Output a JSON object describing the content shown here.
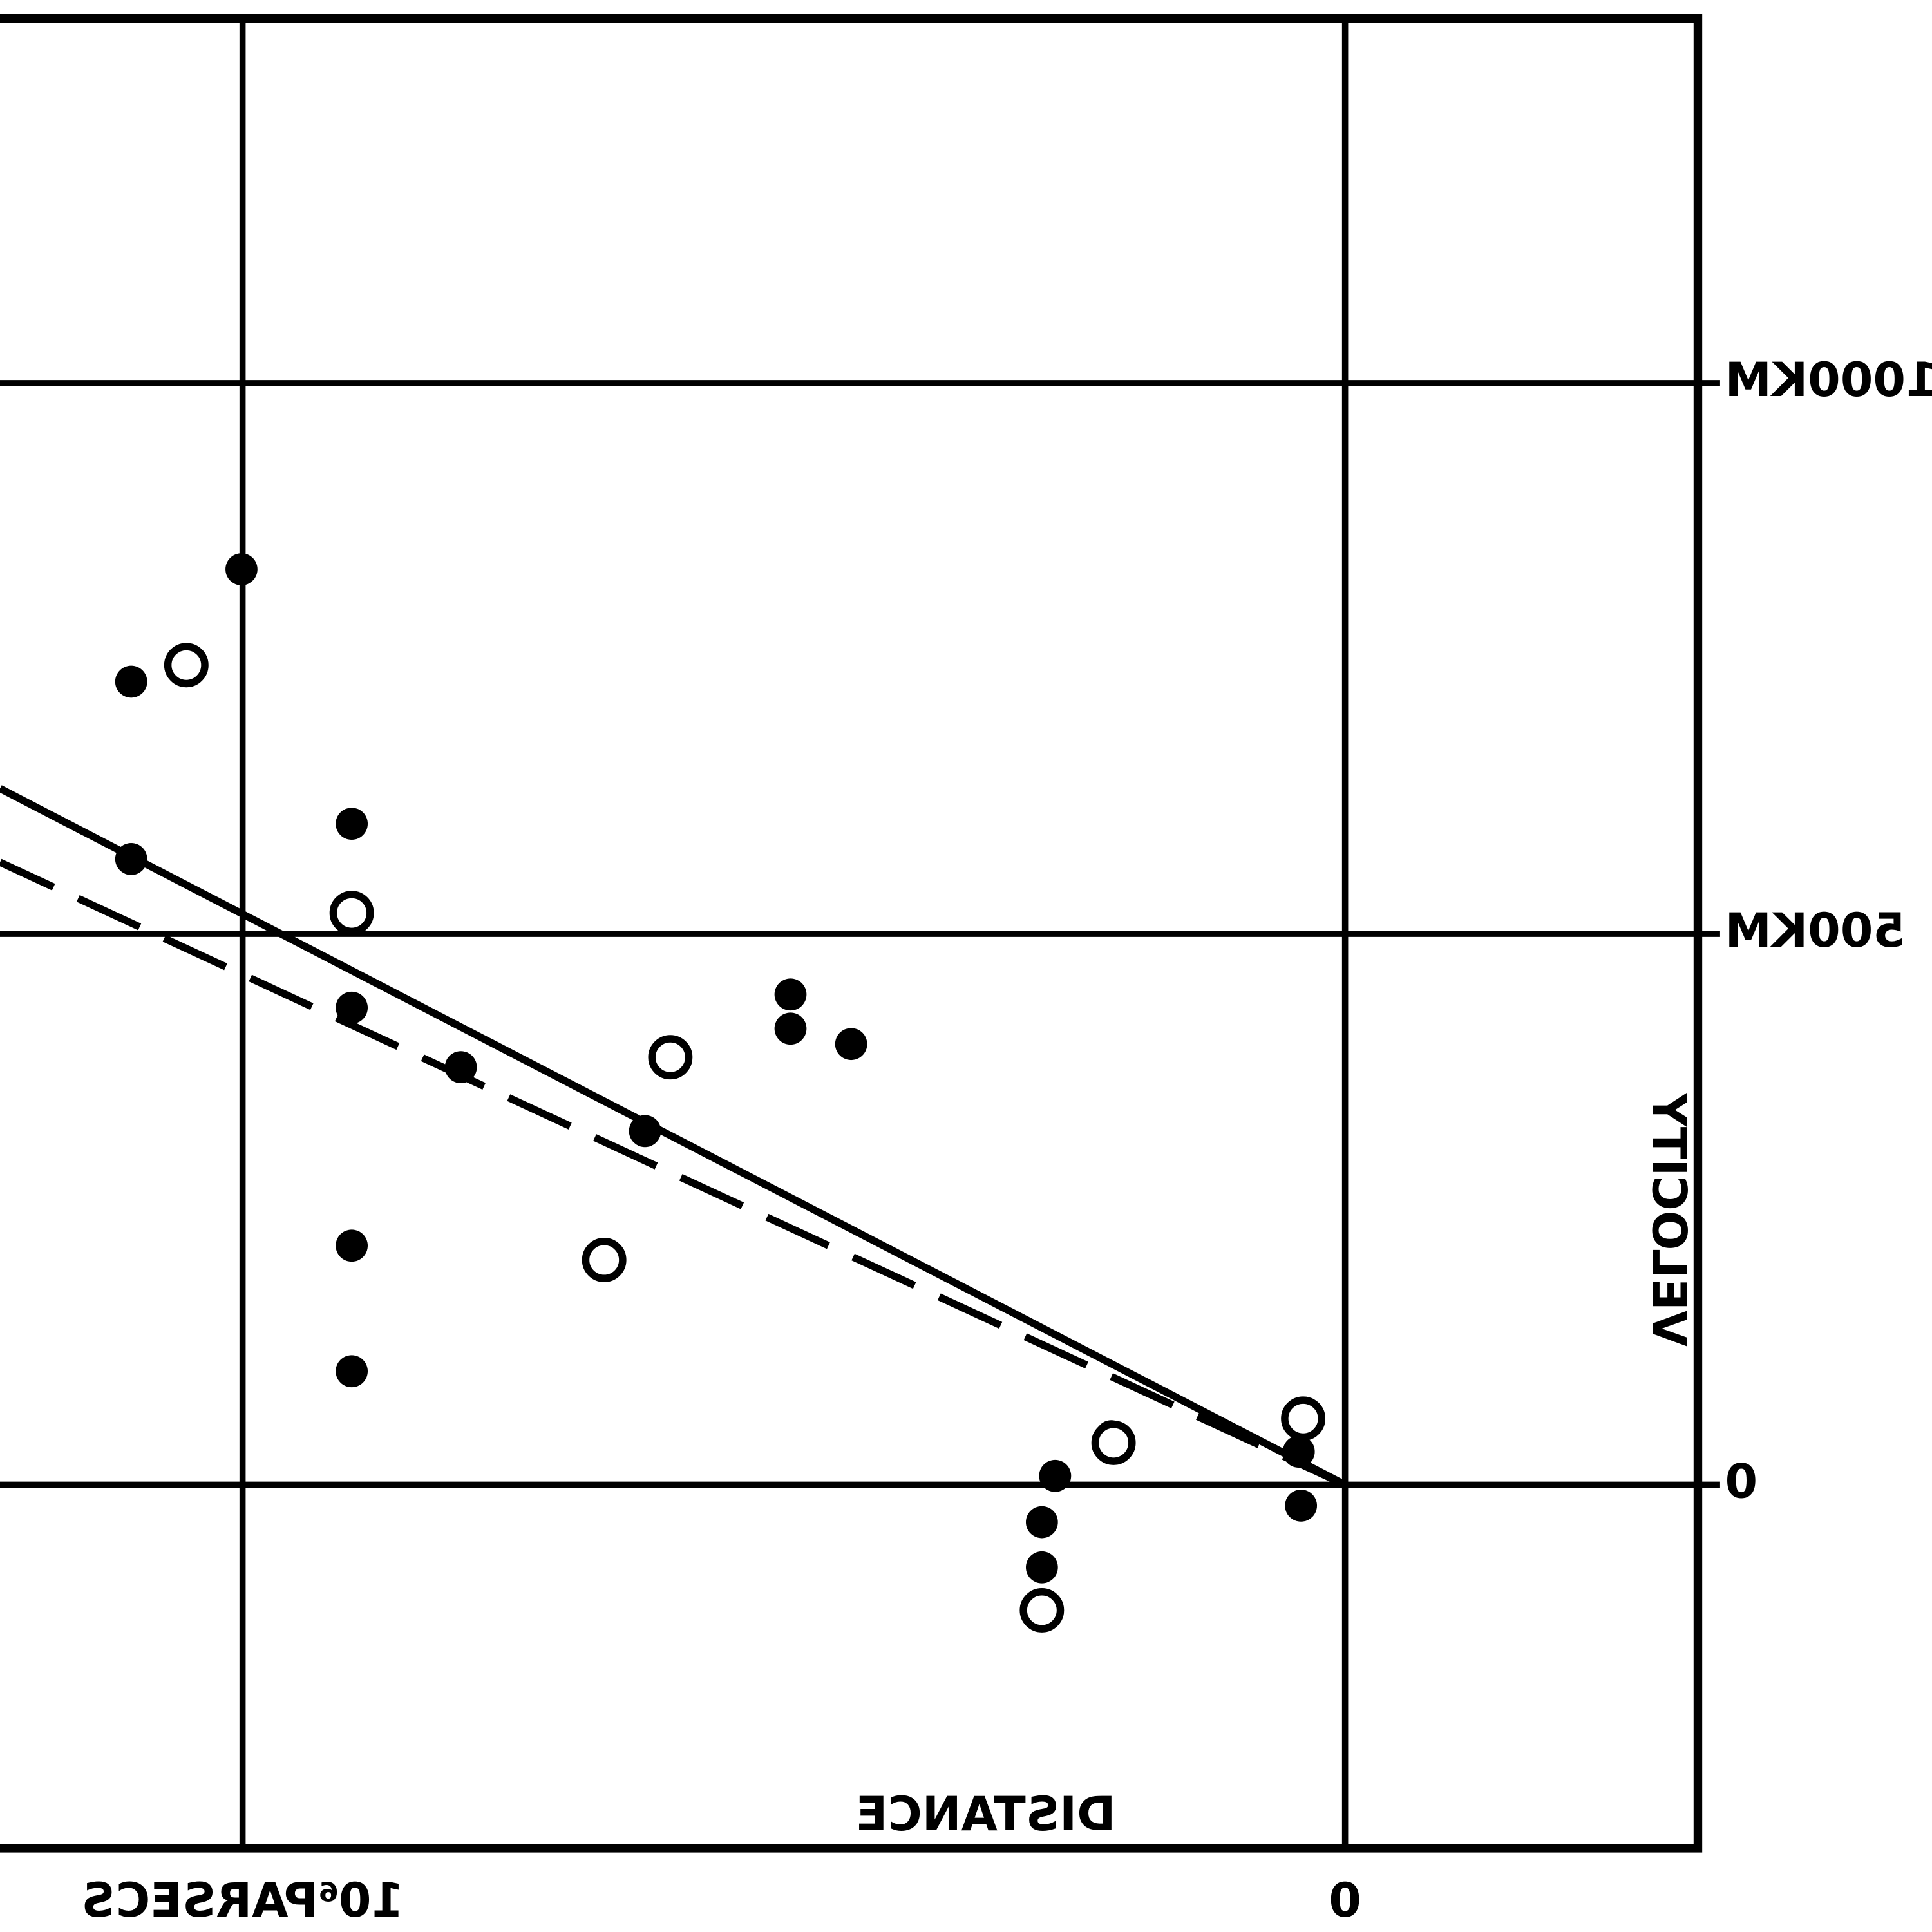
{
  "chart_data": {
    "type": "scatter",
    "x_label": "DISTANCE",
    "y_label": "VELOCITY",
    "xlim": [
      1.22,
      -0.32
    ],
    "ylim": [
      -330,
      1331
    ],
    "xticks": [
      {
        "value": 0,
        "label": "0"
      },
      {
        "value": 1,
        "label": "10⁶PARSECS"
      }
    ],
    "yticks": [
      0,
      {
        "value": 500,
        "label": "500KM"
      },
      {
        "value": 1000,
        "label": "1000KM"
      }
    ],
    "grid": true,
    "mirrored": true,
    "series": [
      {
        "marker": "filled",
        "color": "#000000",
        "x": [
          1.001,
          1.101,
          0.901,
          1.101,
          0.901,
          0.802,
          0.635,
          0.503,
          0.503,
          0.448,
          0.901,
          0.901,
          0.263,
          0.275,
          0.275,
          0.212,
          0.042,
          0.04
        ],
        "values": [
          831,
          729,
          600,
          568,
          433,
          379,
          321,
          445,
          414,
          400,
          217,
          103,
          8,
          -34,
          -75,
          44,
          30,
          -19
        ]
      },
      {
        "marker": "open",
        "color": "#000000",
        "x": [
          1.051,
          0.901,
          0.612,
          0.672,
          0.038,
          0.21,
          0.275
        ],
        "values": [
          744,
          519,
          388,
          204,
          60,
          38,
          -114
        ]
      }
    ],
    "lines": [
      {
        "style": "solid",
        "x": [
          0,
          1.22
        ],
        "values": [
          0,
          632
        ]
      },
      {
        "style": "dashed",
        "x": [
          0,
          1.22
        ],
        "values": [
          0,
          565
        ]
      }
    ]
  }
}
